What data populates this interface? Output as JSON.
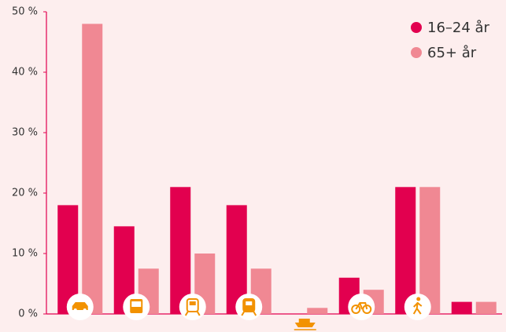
{
  "chart_data": {
    "type": "bar",
    "categories": [
      null,
      null,
      null,
      null,
      null,
      null,
      null,
      null
    ],
    "series": [
      {
        "name": "16–24 år",
        "color": "#e2004f",
        "values": [
          18,
          14.5,
          21,
          18,
          0,
          6,
          21,
          2
        ]
      },
      {
        "name": "65+ år",
        "color": "#f08893",
        "values": [
          48,
          7.5,
          10,
          7.5,
          1,
          4,
          21,
          2
        ]
      }
    ],
    "ylim": [
      0,
      50
    ],
    "yticks": [
      {
        "value": 0,
        "label": "0 %"
      },
      {
        "value": 10,
        "label": "10 %"
      },
      {
        "value": 20,
        "label": "20 %"
      },
      {
        "value": 30,
        "label": "30 %"
      },
      {
        "value": 40,
        "label": "40 %"
      },
      {
        "value": 50,
        "label": "50 %"
      }
    ],
    "grid": false,
    "legend": "upper right"
  }
}
